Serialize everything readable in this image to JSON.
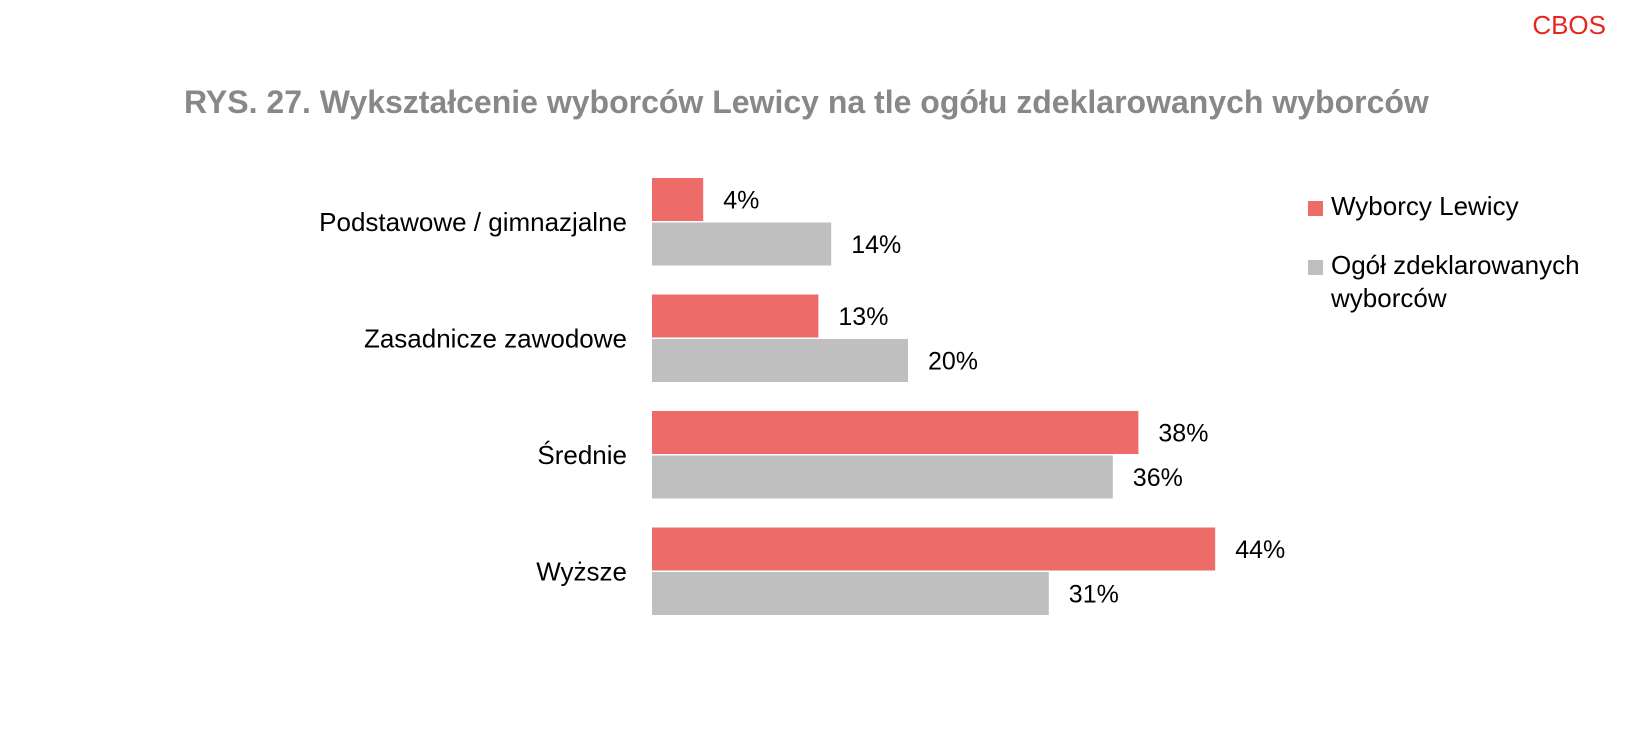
{
  "brand": "CBOS",
  "chart_data": {
    "type": "bar",
    "orientation": "horizontal",
    "title": "RYS. 27.  Wykształcenie wyborców Lewicy na tle ogółu zdeklarowanych wyborców",
    "categories": [
      "Podstawowe / gimnazjalne",
      "Zasadnicze zawodowe",
      "Średnie",
      "Wyższe"
    ],
    "series": [
      {
        "name": "Wyborcy Lewicy",
        "values": [
          4,
          13,
          38,
          44
        ],
        "labels": [
          "4%",
          "13%",
          "38%",
          "44%"
        ],
        "color": "#ed6c6a"
      },
      {
        "name": "Ogół zdeklarowanych wyborców",
        "values": [
          14,
          20,
          36,
          31
        ],
        "labels": [
          "14%",
          "20%",
          "36%",
          "31%"
        ],
        "color": "#bfbfbf"
      }
    ],
    "legend_position": "right",
    "grid": false
  }
}
